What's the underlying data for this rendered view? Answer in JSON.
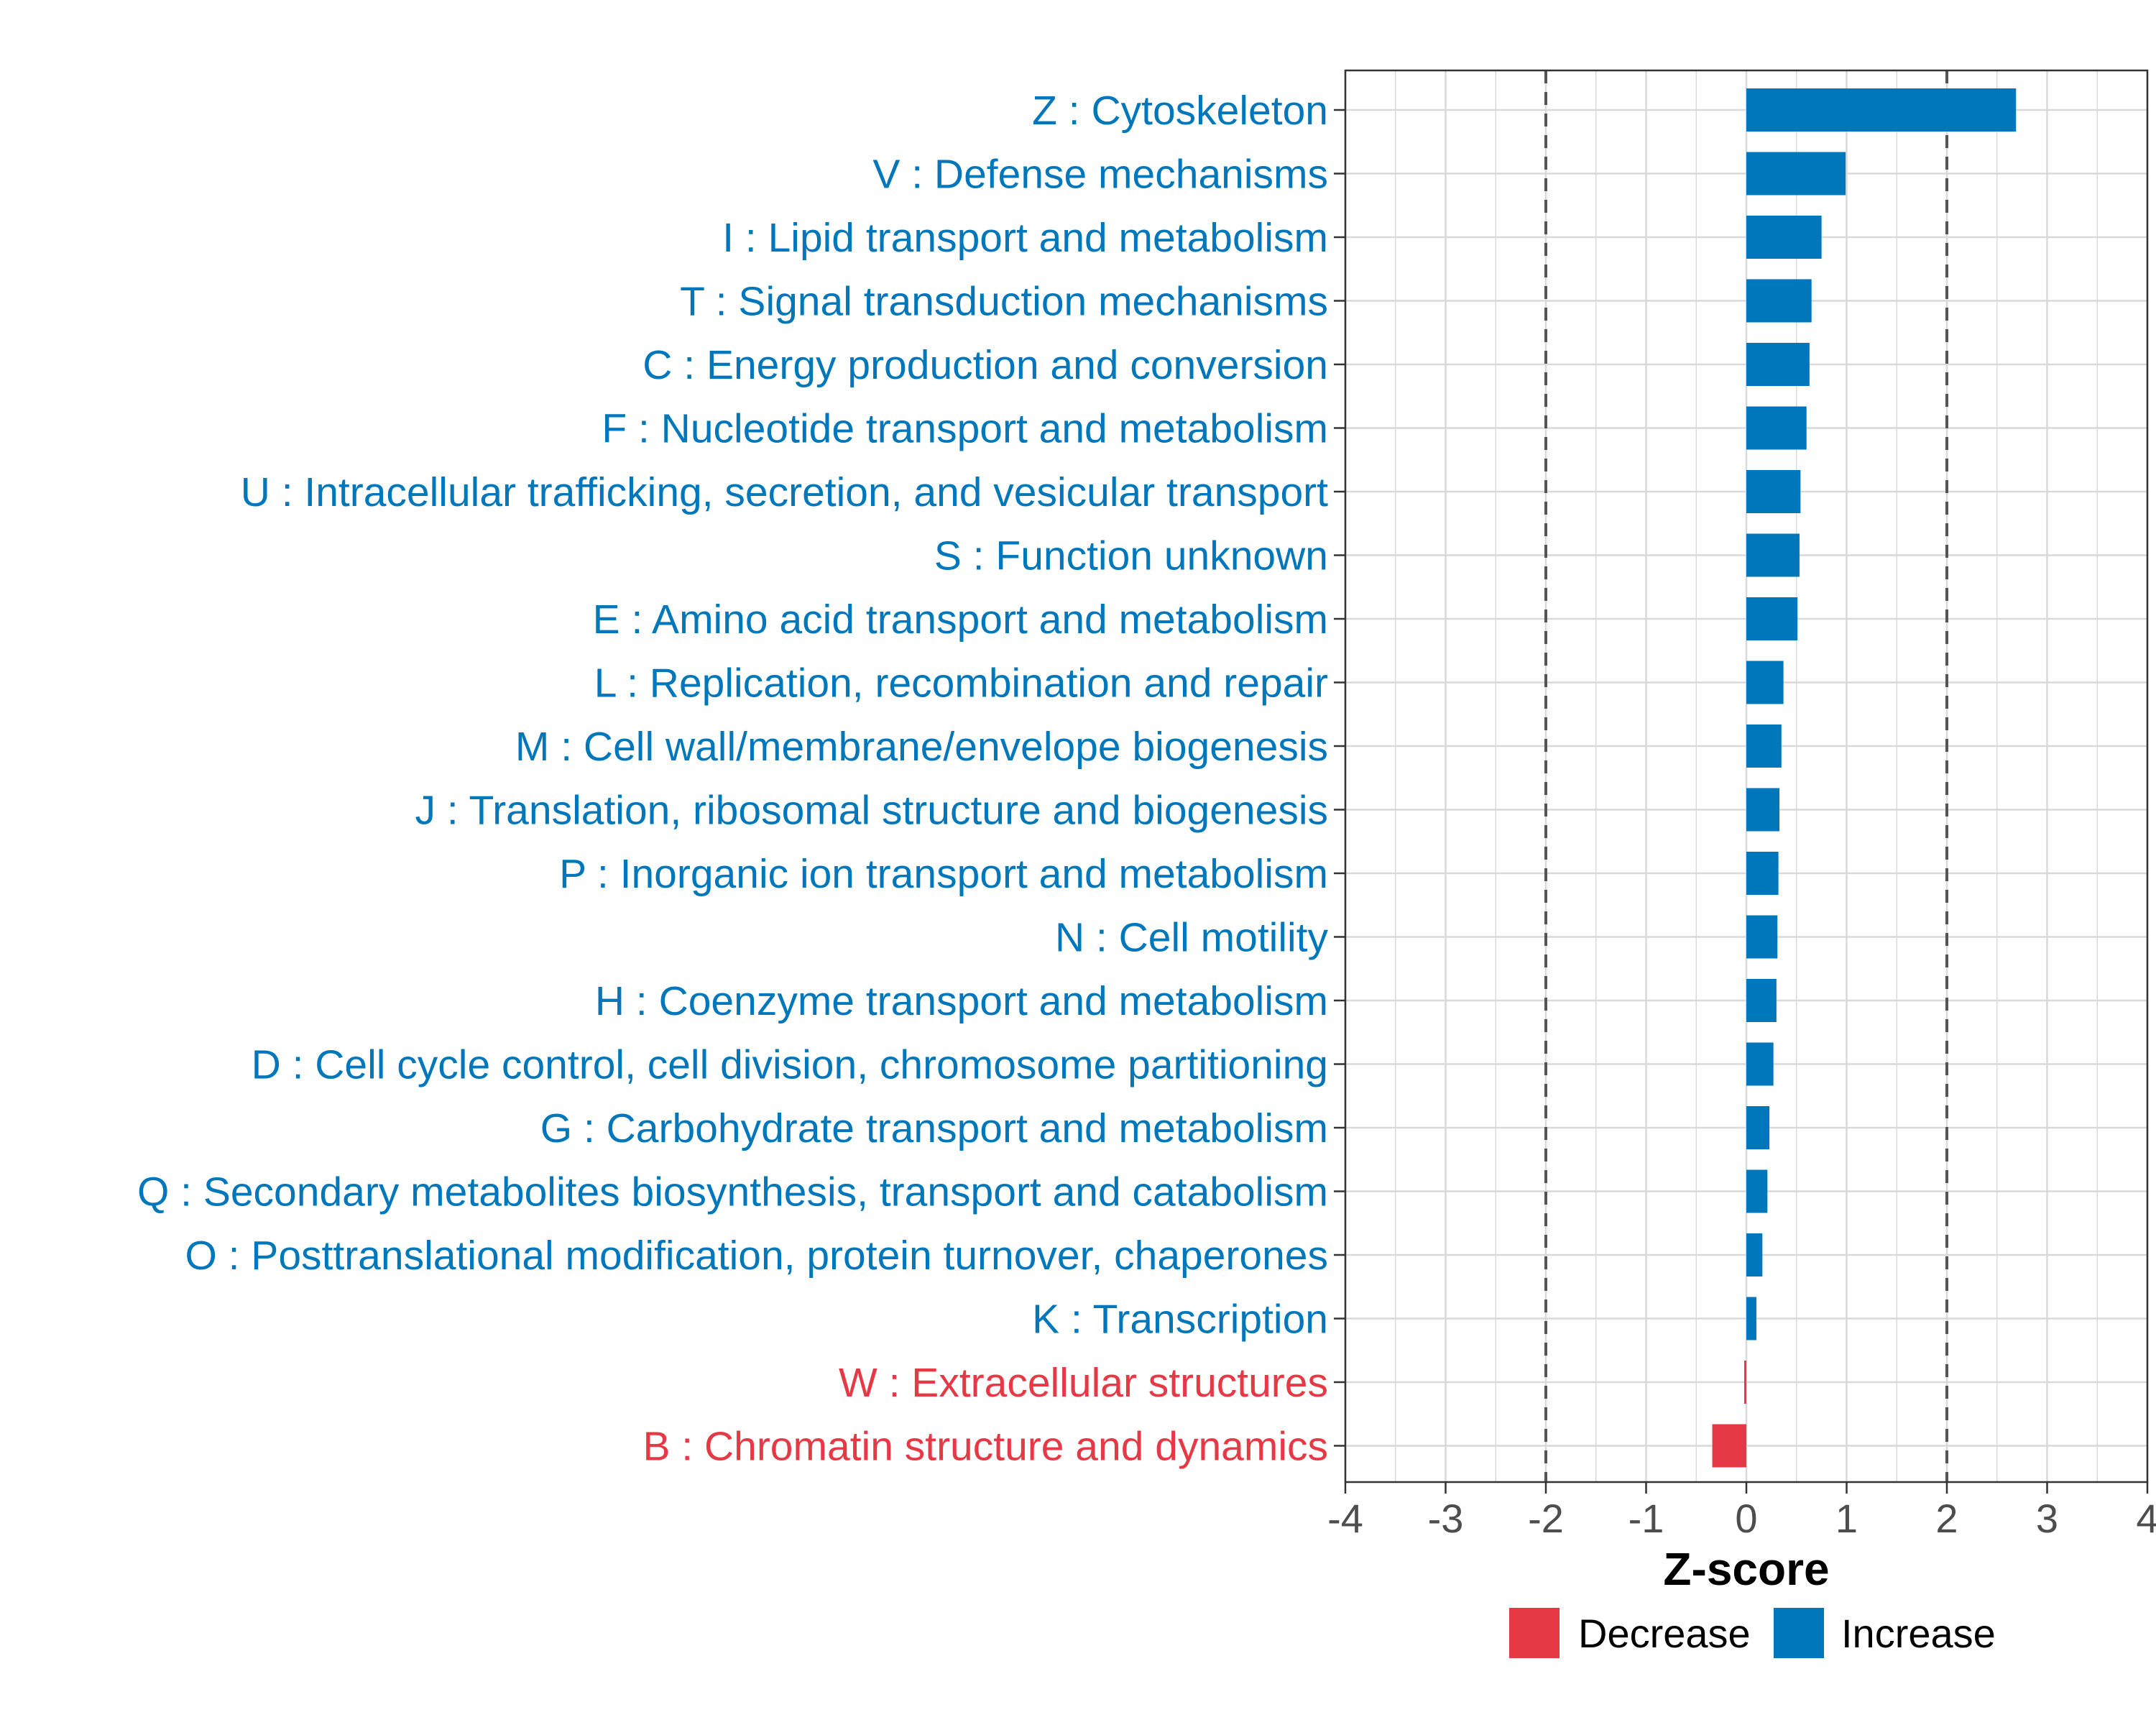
{
  "colors": {
    "increase": "#0077bb",
    "decrease": "#e63946",
    "grid": "#d9d9d9",
    "axis_text": "#4d4d4d",
    "panel_border": "#333333",
    "threshold_line": "#555555"
  },
  "chart_data": {
    "type": "bar",
    "orientation": "horizontal",
    "title": "",
    "xlabel": "Z-score",
    "ylabel": "",
    "xlim": [
      -4,
      4
    ],
    "xticks": [
      -4,
      -3,
      -2,
      -1,
      0,
      1,
      2,
      3,
      4
    ],
    "xtick_labels": [
      "-4",
      "-3",
      "-2",
      "-1",
      "0",
      "1",
      "2",
      "3",
      "4"
    ],
    "threshold_lines": [
      -2,
      2
    ],
    "grid": true,
    "categories": [
      "Z : Cytoskeleton",
      "V : Defense mechanisms",
      "I : Lipid transport and metabolism",
      "T : Signal transduction mechanisms",
      "C : Energy production and conversion",
      "F : Nucleotide transport and metabolism",
      "U : Intracellular trafficking, secretion, and vesicular transport",
      "S : Function unknown",
      "E : Amino acid transport and metabolism",
      "L : Replication, recombination and repair",
      "M : Cell wall/membrane/envelope biogenesis",
      "J : Translation, ribosomal structure and biogenesis",
      "P : Inorganic ion transport and metabolism",
      "N : Cell motility",
      "H : Coenzyme transport and metabolism",
      "D : Cell cycle control, cell division, chromosome partitioning",
      "G : Carbohydrate transport and metabolism",
      "Q : Secondary metabolites biosynthesis, transport and catabolism",
      "O : Posttranslational modification, protein turnover, chaperones",
      "K : Transcription",
      "W : Extracellular structures",
      "B : Chromatin structure and dynamics"
    ],
    "values": [
      2.69,
      0.99,
      0.75,
      0.65,
      0.63,
      0.6,
      0.54,
      0.53,
      0.51,
      0.37,
      0.35,
      0.33,
      0.32,
      0.31,
      0.3,
      0.27,
      0.23,
      0.21,
      0.16,
      0.1,
      -0.02,
      -0.34
    ],
    "groups": [
      "Increase",
      "Increase",
      "Increase",
      "Increase",
      "Increase",
      "Increase",
      "Increase",
      "Increase",
      "Increase",
      "Increase",
      "Increase",
      "Increase",
      "Increase",
      "Increase",
      "Increase",
      "Increase",
      "Increase",
      "Increase",
      "Increase",
      "Increase",
      "Decrease",
      "Decrease"
    ],
    "legend": {
      "position": "bottom",
      "entries": [
        {
          "label": "Decrease",
          "color": "#e63946"
        },
        {
          "label": "Increase",
          "color": "#0077bb"
        }
      ]
    }
  }
}
